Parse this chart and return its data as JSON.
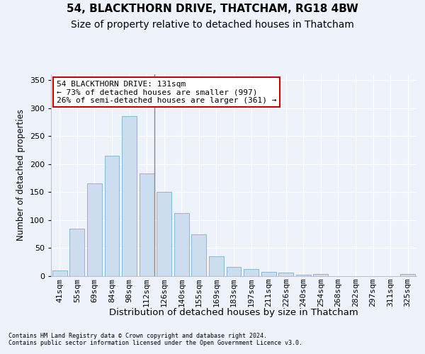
{
  "title": "54, BLACKTHORN DRIVE, THATCHAM, RG18 4BW",
  "subtitle": "Size of property relative to detached houses in Thatcham",
  "xlabel": "Distribution of detached houses by size in Thatcham",
  "ylabel": "Number of detached properties",
  "categories": [
    "41sqm",
    "55sqm",
    "69sqm",
    "84sqm",
    "98sqm",
    "112sqm",
    "126sqm",
    "140sqm",
    "155sqm",
    "169sqm",
    "183sqm",
    "197sqm",
    "211sqm",
    "226sqm",
    "240sqm",
    "254sqm",
    "268sqm",
    "282sqm",
    "297sqm",
    "311sqm",
    "325sqm"
  ],
  "values": [
    10,
    85,
    165,
    215,
    285,
    183,
    150,
    113,
    75,
    36,
    17,
    13,
    8,
    6,
    2,
    4,
    0,
    0,
    0,
    0,
    4
  ],
  "bar_color": "#ccddf0",
  "bar_edge_color": "#7aafd4",
  "annotation_line1": "54 BLACKTHORN DRIVE: 131sqm",
  "annotation_line2": "← 73% of detached houses are smaller (997)",
  "annotation_line3": "26% of semi-detached houses are larger (361) →",
  "annotation_box_color": "#ffffff",
  "annotation_box_edge": "#cc0000",
  "vline_x": 5.435,
  "ylim": [
    0,
    360
  ],
  "yticks": [
    0,
    50,
    100,
    150,
    200,
    250,
    300,
    350
  ],
  "background_color": "#eef2fb",
  "plot_bg_color": "#eef2fb",
  "footer_line1": "Contains HM Land Registry data © Crown copyright and database right 2024.",
  "footer_line2": "Contains public sector information licensed under the Open Government Licence v3.0.",
  "title_fontsize": 11,
  "subtitle_fontsize": 10,
  "xlabel_fontsize": 9.5,
  "ylabel_fontsize": 8.5,
  "tick_fontsize": 8,
  "annotation_fontsize": 8
}
